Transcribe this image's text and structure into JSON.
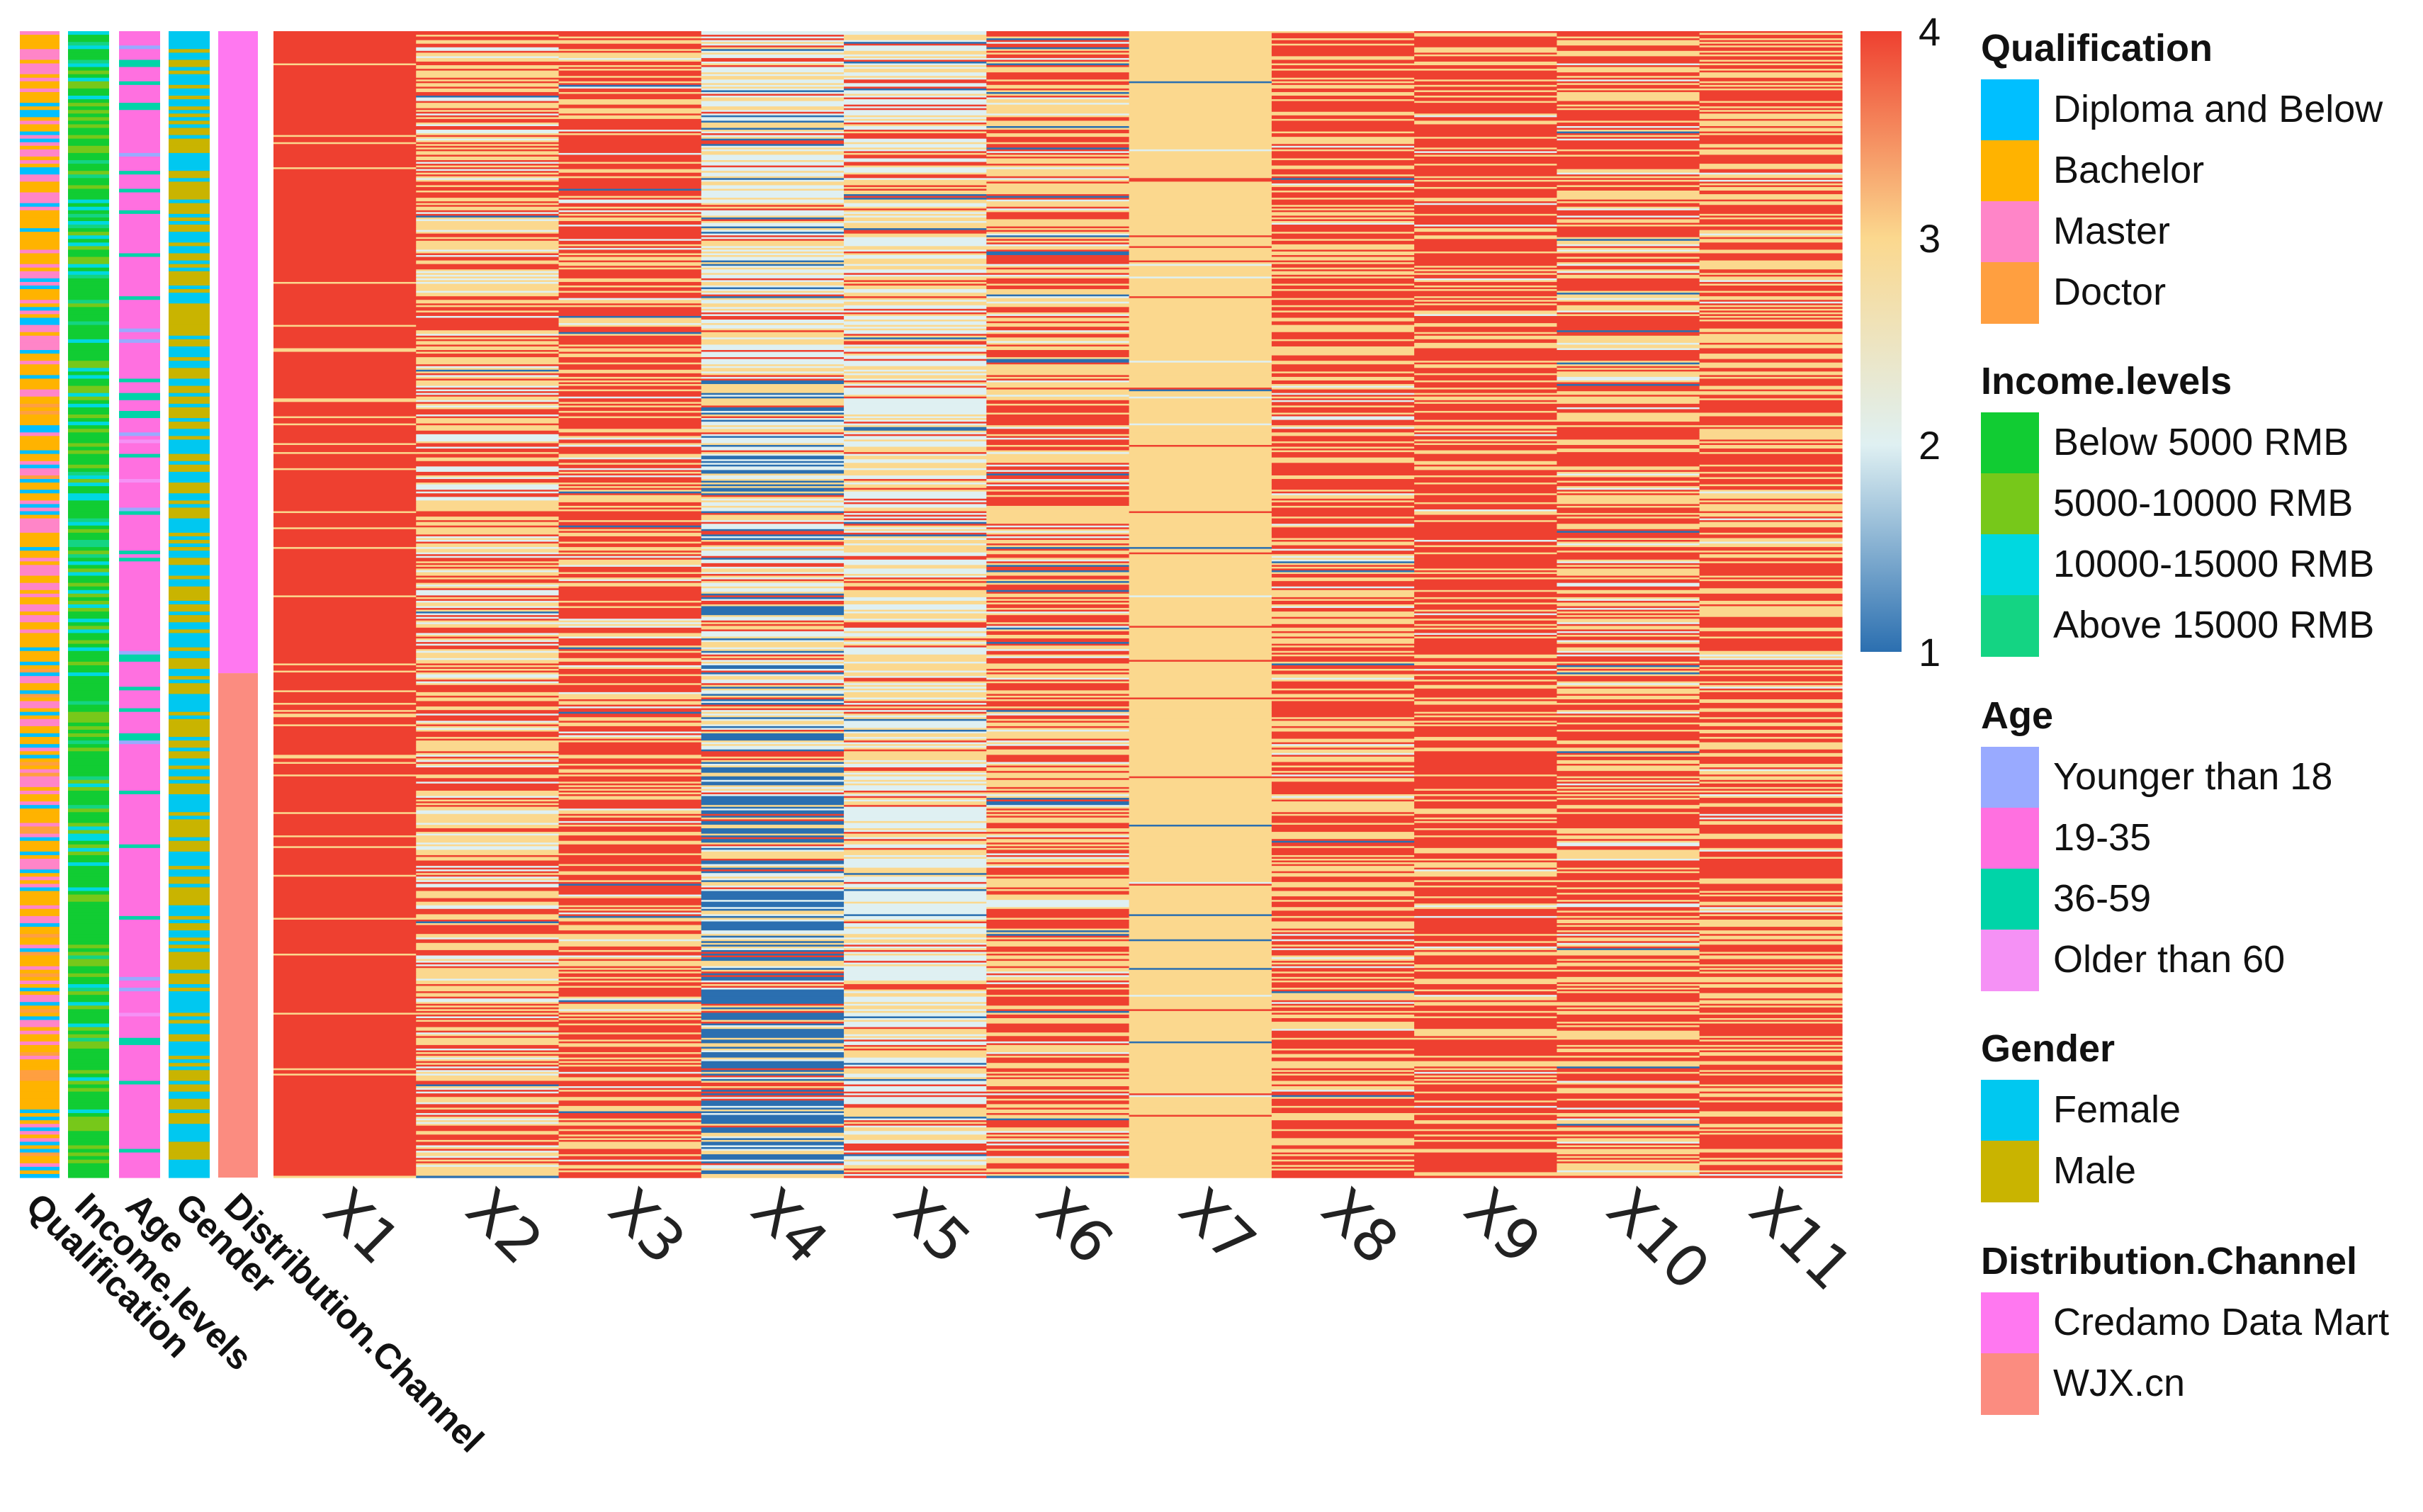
{
  "chart_data": {
    "type": "heatmap",
    "title": "",
    "columns": [
      "X1",
      "X2",
      "X3",
      "X4",
      "X5",
      "X6",
      "X7",
      "X8",
      "X9",
      "X10",
      "X11"
    ],
    "value_range": [
      1,
      4
    ],
    "color_scale": {
      "ticks": [
        "1",
        "2",
        "3",
        "4"
      ],
      "stops": [
        {
          "value": 1,
          "color": "#2b6fb0"
        },
        {
          "value": 2,
          "color": "#dff0f2"
        },
        {
          "value": 3,
          "color": "#fbd88e"
        },
        {
          "value": 4,
          "color": "#ee4030"
        }
      ]
    },
    "column_profiles": {
      "X1": {
        "p": [
          0,
          0,
          0.08,
          0.92
        ]
      },
      "X2": {
        "p": [
          0.01,
          0.18,
          0.45,
          0.36
        ]
      },
      "X3": {
        "p": [
          0.02,
          0.05,
          0.33,
          0.6
        ]
      },
      "X4": {
        "p": [
          0.25,
          0.3,
          0.32,
          0.13
        ],
        "blue_bottom": true
      },
      "X5": {
        "p": [
          0.03,
          0.42,
          0.38,
          0.17
        ]
      },
      "X6": {
        "p": [
          0.05,
          0.1,
          0.38,
          0.47
        ]
      },
      "X7": {
        "p": [
          0.01,
          0.02,
          0.95,
          0.02
        ]
      },
      "X8": {
        "p": [
          0.01,
          0.03,
          0.38,
          0.58
        ]
      },
      "X9": {
        "p": [
          0.0,
          0.02,
          0.28,
          0.7
        ]
      },
      "X10": {
        "p": [
          0.02,
          0.08,
          0.38,
          0.52
        ]
      },
      "X11": {
        "p": [
          0.0,
          0.02,
          0.4,
          0.58
        ]
      }
    },
    "annotation_tracks": [
      {
        "name": "Qualification",
        "colors": [
          "#00bfff",
          "#ffb300",
          "#ff85c8",
          "#ff9f40"
        ],
        "weights": [
          0.15,
          0.45,
          0.35,
          0.05
        ]
      },
      {
        "name": "Income.levels",
        "colors": [
          "#11cc33",
          "#77c81a",
          "#00d8e0",
          "#14d483"
        ],
        "weights": [
          0.55,
          0.25,
          0.12,
          0.08
        ]
      },
      {
        "name": "Age",
        "colors": [
          "#99aaff",
          "#ff70e0",
          "#00d4a8",
          "#f591f5"
        ],
        "weights": [
          0.02,
          0.85,
          0.1,
          0.03
        ]
      },
      {
        "name": "Gender",
        "colors": [
          "#00c8f0",
          "#c9b400"
        ],
        "weights": [
          0.5,
          0.5
        ]
      },
      {
        "name": "Distribution.Channel",
        "colors": [
          "#ff78f0",
          "#fb8c80"
        ],
        "split": 0.56
      }
    ],
    "legend": [
      {
        "title": "Qualification",
        "items": [
          {
            "label": "Diploma and Below",
            "color": "#00bfff"
          },
          {
            "label": "Bachelor",
            "color": "#ffb300"
          },
          {
            "label": "Master",
            "color": "#ff85c8"
          },
          {
            "label": "Doctor",
            "color": "#ff9f40"
          }
        ]
      },
      {
        "title": "Income.levels",
        "items": [
          {
            "label": "Below 5000 RMB",
            "color": "#11cc33"
          },
          {
            "label": "5000-10000 RMB",
            "color": "#77c81a"
          },
          {
            "label": "10000-15000 RMB",
            "color": "#00d8e0"
          },
          {
            "label": "Above 15000 RMB",
            "color": "#14d483"
          }
        ]
      },
      {
        "title": "Age",
        "items": [
          {
            "label": "Younger than 18",
            "color": "#99aaff"
          },
          {
            "label": "19-35",
            "color": "#ff70e0"
          },
          {
            "label": "36-59",
            "color": "#00d4a8"
          },
          {
            "label": "Older than 60",
            "color": "#f591f5"
          }
        ]
      },
      {
        "title": "Gender",
        "items": [
          {
            "label": "Female",
            "color": "#00c8f0"
          },
          {
            "label": "Male",
            "color": "#c9b400"
          }
        ]
      },
      {
        "title": "Distribution.Channel",
        "items": [
          {
            "label": "Credamo Data Mart",
            "color": "#ff78f0"
          },
          {
            "label": "WJX.cn",
            "color": "#fb8c80"
          }
        ]
      }
    ]
  }
}
